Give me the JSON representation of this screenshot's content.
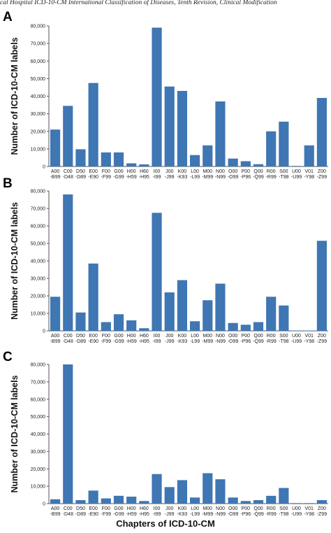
{
  "page": {
    "header": "cal Hospital ICD-10-CM International Classification of Diseases, Tenth Revision, Clinical Modification",
    "xlabel": "Chapters of ICD-10-CM"
  },
  "colors": {
    "bar": "#3f76b4",
    "axis": "#555555",
    "text": "#222222"
  },
  "chart_data": [
    {
      "type": "bar",
      "panel_label": "A",
      "ylabel": "Number of ICD-10-CM labels",
      "ylim": [
        0,
        80000
      ],
      "yticks": [
        0,
        10000,
        20000,
        30000,
        40000,
        50000,
        60000,
        70000,
        80000
      ],
      "ytick_labels": [
        "0",
        "10,000",
        "20,000",
        "30,000",
        "40,000",
        "50,000",
        "60,000",
        "70,000",
        "80,000"
      ],
      "grid": false,
      "categories": [
        [
          "A00",
          "-B99"
        ],
        [
          "C00",
          "-D48"
        ],
        [
          "D50",
          "-D89"
        ],
        [
          "E00",
          "-E90"
        ],
        [
          "F00",
          "-F99"
        ],
        [
          "G00",
          "-G99"
        ],
        [
          "H00",
          "-H59"
        ],
        [
          "H60",
          "-H95"
        ],
        [
          "I00",
          "-I99"
        ],
        [
          "J00",
          "-J99"
        ],
        [
          "K00",
          "-K93"
        ],
        [
          "L00",
          "-L99"
        ],
        [
          "M00",
          "-M99"
        ],
        [
          "N00",
          "-N99"
        ],
        [
          "O00",
          "-O99"
        ],
        [
          "P00",
          "-P96"
        ],
        [
          "Q00",
          "-Q99"
        ],
        [
          "R00",
          "-R99"
        ],
        [
          "S00",
          "-T98"
        ],
        [
          "U00",
          "-U99"
        ],
        [
          "V01",
          "-Y98"
        ],
        [
          "Z00",
          "-Z99"
        ]
      ],
      "values": [
        21000,
        34500,
        9800,
        47500,
        8000,
        8000,
        1800,
        1200,
        79000,
        45500,
        43000,
        6500,
        12000,
        37000,
        4500,
        3000,
        1300,
        20000,
        25500,
        300,
        12000,
        39000
      ]
    },
    {
      "type": "bar",
      "panel_label": "B",
      "ylabel": "Number of ICD-10-CM labels",
      "ylim": [
        0,
        80000
      ],
      "yticks": [
        0,
        10000,
        20000,
        30000,
        40000,
        50000,
        60000,
        70000,
        80000
      ],
      "ytick_labels": [
        "0",
        "10,000",
        "20,000",
        "30,000",
        "40,000",
        "50,000",
        "60,000",
        "70,000",
        "80,000"
      ],
      "grid": false,
      "categories": [
        [
          "A00",
          "-B99"
        ],
        [
          "C00",
          "-D48"
        ],
        [
          "D50",
          "-D89"
        ],
        [
          "E00",
          "-E90"
        ],
        [
          "F00",
          "-F99"
        ],
        [
          "G00",
          "-G99"
        ],
        [
          "H00",
          "-H59"
        ],
        [
          "H60",
          "-H95"
        ],
        [
          "I00",
          "-I99"
        ],
        [
          "J00",
          "-J99"
        ],
        [
          "K00",
          "-K93"
        ],
        [
          "L00",
          "-L99"
        ],
        [
          "M00",
          "-M99"
        ],
        [
          "N00",
          "-N99"
        ],
        [
          "O00",
          "-O99"
        ],
        [
          "P00",
          "-P96"
        ],
        [
          "Q00",
          "-Q99"
        ],
        [
          "R00",
          "-R99"
        ],
        [
          "S00",
          "-T98"
        ],
        [
          "U00",
          "-U99"
        ],
        [
          "V01",
          "-Y98"
        ],
        [
          "Z00",
          "-Z99"
        ]
      ],
      "values": [
        19500,
        78000,
        10500,
        38500,
        5000,
        9500,
        6000,
        1500,
        67500,
        22000,
        29000,
        5500,
        17500,
        27000,
        4500,
        3500,
        5000,
        19500,
        14500,
        200,
        200,
        51500
      ]
    },
    {
      "type": "bar",
      "panel_label": "C",
      "ylabel": "Number of ICD-10-CM labels",
      "ylim": [
        0,
        80000
      ],
      "yticks": [
        0,
        10000,
        20000,
        30000,
        40000,
        50000,
        60000,
        70000,
        80000
      ],
      "ytick_labels": [
        "0",
        "10,000",
        "20,000",
        "30,000",
        "40,000",
        "50,000",
        "60,000",
        "70,000",
        "80,000"
      ],
      "grid": false,
      "categories": [
        [
          "A00",
          "-B99"
        ],
        [
          "C00",
          "-D48"
        ],
        [
          "D50",
          "-D89"
        ],
        [
          "E00",
          "-E90"
        ],
        [
          "F00",
          "-F99"
        ],
        [
          "G00",
          "-G99"
        ],
        [
          "H00",
          "-H59"
        ],
        [
          "H60",
          "-H95"
        ],
        [
          "I00",
          "-I99"
        ],
        [
          "J00",
          "-J99"
        ],
        [
          "K00",
          "-K93"
        ],
        [
          "L00",
          "-L99"
        ],
        [
          "M00",
          "-M99"
        ],
        [
          "N00",
          "-N99"
        ],
        [
          "O00",
          "-O99"
        ],
        [
          "P00",
          "-P96"
        ],
        [
          "Q00",
          "-Q99"
        ],
        [
          "R00",
          "-R99"
        ],
        [
          "S00",
          "-T98"
        ],
        [
          "U00",
          "-U99"
        ],
        [
          "V01",
          "-Y98"
        ],
        [
          "Z00",
          "-Z99"
        ]
      ],
      "values": [
        2500,
        80000,
        2000,
        7500,
        3000,
        4500,
        4000,
        1500,
        17000,
        9500,
        13500,
        3500,
        17500,
        14000,
        3500,
        1500,
        2000,
        4500,
        9000,
        300,
        300,
        2000
      ]
    }
  ]
}
